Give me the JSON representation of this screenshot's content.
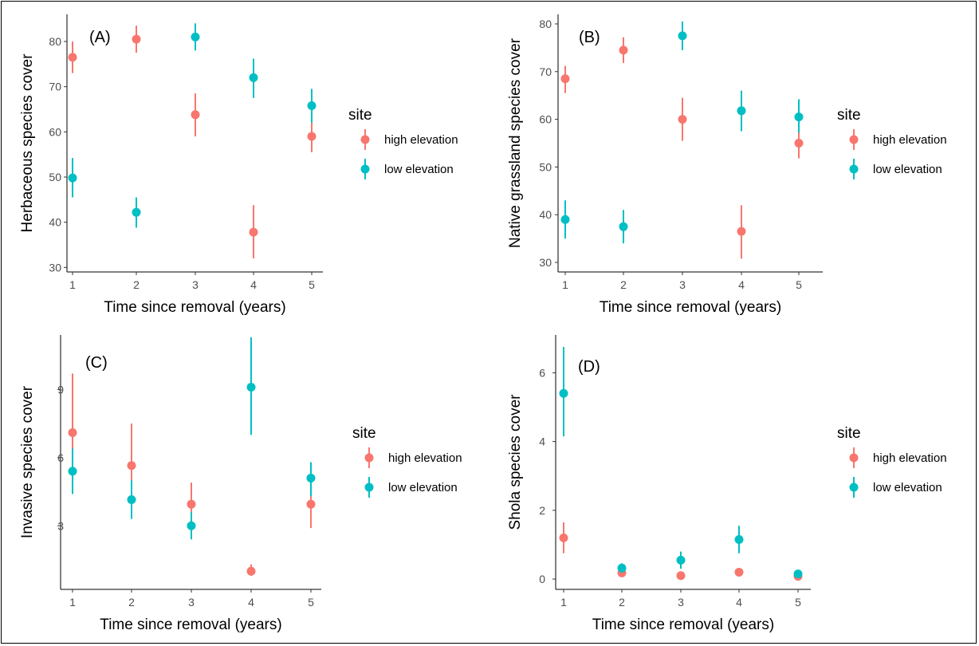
{
  "chart_data": [
    {
      "type": "scatter",
      "panel_label": "(A)",
      "xlabel": "Time since removal (years)",
      "ylabel": "Herbaceous species cover",
      "x_ticks": [
        1,
        2,
        3,
        4,
        5
      ],
      "y_ticks": [
        30,
        40,
        50,
        60,
        70,
        80
      ],
      "xlim": [
        0.8,
        5.2
      ],
      "ylim": [
        29,
        86
      ],
      "grid": false,
      "legend": {
        "title": "site",
        "position": "right"
      },
      "series": [
        {
          "name": "high elevation",
          "color": "#F8766D",
          "x": [
            1,
            2,
            3,
            4,
            5
          ],
          "y": [
            76.5,
            80.5,
            63.8,
            37.8,
            59.0
          ],
          "ymin": [
            73.0,
            77.5,
            59.0,
            32.0,
            55.5
          ],
          "ymax": [
            80.0,
            83.5,
            68.5,
            43.8,
            62.8
          ]
        },
        {
          "name": "low elevation",
          "color": "#00BFC4",
          "x": [
            1,
            2,
            3,
            4,
            5
          ],
          "y": [
            49.8,
            42.2,
            81.0,
            72.0,
            65.8
          ],
          "ymin": [
            45.5,
            38.8,
            78.0,
            67.5,
            62.0
          ],
          "ymax": [
            54.2,
            45.5,
            84.0,
            76.2,
            69.5
          ]
        }
      ]
    },
    {
      "type": "scatter",
      "panel_label": "(B)",
      "xlabel": "Time since removal (years)",
      "ylabel": "Native grassland species cover",
      "x_ticks": [
        1,
        2,
        3,
        4,
        5
      ],
      "y_ticks": [
        30,
        40,
        50,
        60,
        70,
        80
      ],
      "xlim": [
        0.8,
        5.2
      ],
      "ylim": [
        28,
        82
      ],
      "grid": false,
      "legend": {
        "title": "site",
        "position": "right"
      },
      "series": [
        {
          "name": "high elevation",
          "color": "#F8766D",
          "x": [
            1,
            2,
            3,
            4,
            5
          ],
          "y": [
            68.5,
            74.5,
            60.0,
            36.5,
            55.0
          ],
          "ymin": [
            65.5,
            71.8,
            55.5,
            30.8,
            51.8
          ],
          "ymax": [
            71.2,
            77.2,
            64.5,
            42.0,
            58.2
          ]
        },
        {
          "name": "low elevation",
          "color": "#00BFC4",
          "x": [
            1,
            2,
            3,
            4,
            5
          ],
          "y": [
            39.0,
            37.5,
            77.5,
            61.8,
            60.5
          ],
          "ymin": [
            35.0,
            34.0,
            74.5,
            57.5,
            57.2
          ],
          "ymax": [
            43.0,
            41.0,
            80.5,
            66.0,
            64.2
          ]
        }
      ]
    },
    {
      "type": "scatter",
      "panel_label": "(C)",
      "xlabel": "Time since removal (years)",
      "ylabel": "Invasive species cover",
      "x_ticks": [
        1,
        2,
        3,
        4,
        5
      ],
      "y_ticks": [
        3,
        6,
        9
      ],
      "xlim": [
        0.8,
        5.2
      ],
      "ylim": [
        0.2,
        11.4
      ],
      "grid": false,
      "legend": {
        "title": "site",
        "position": "right"
      },
      "series": [
        {
          "name": "high elevation",
          "color": "#F8766D",
          "x": [
            1,
            2,
            3,
            4,
            5
          ],
          "y": [
            7.1,
            5.65,
            3.95,
            1.0,
            3.95
          ],
          "ymin": [
            4.6,
            3.9,
            2.9,
            0.8,
            2.9
          ],
          "ymax": [
            9.7,
            7.5,
            4.9,
            1.3,
            5.1
          ]
        },
        {
          "name": "low elevation",
          "color": "#00BFC4",
          "x": [
            1,
            2,
            3,
            4,
            5
          ],
          "y": [
            5.4,
            4.15,
            3.0,
            9.1,
            5.1
          ],
          "ymin": [
            4.4,
            3.3,
            2.4,
            7.0,
            4.3
          ],
          "ymax": [
            6.4,
            5.0,
            3.6,
            11.3,
            5.8
          ]
        }
      ]
    },
    {
      "type": "scatter",
      "panel_label": "(D)",
      "xlabel": "Time since removal (years)",
      "ylabel": "Shola species cover",
      "x_ticks": [
        1,
        2,
        3,
        4,
        5
      ],
      "y_ticks": [
        0,
        2,
        4,
        6
      ],
      "xlim": [
        0.8,
        5.2
      ],
      "ylim": [
        -0.3,
        7.1
      ],
      "grid": false,
      "legend": {
        "title": "site",
        "position": "right"
      },
      "series": [
        {
          "name": "high elevation",
          "color": "#F8766D",
          "x": [
            1,
            2,
            3,
            4,
            5
          ],
          "y": [
            1.2,
            0.18,
            0.1,
            0.2,
            0.08
          ],
          "ymin": [
            0.75,
            0.1,
            0.0,
            0.1,
            0.0
          ],
          "ymax": [
            1.65,
            0.28,
            0.2,
            0.32,
            0.16
          ]
        },
        {
          "name": "low elevation",
          "color": "#00BFC4",
          "x": [
            1,
            2,
            3,
            4,
            5
          ],
          "y": [
            5.4,
            0.32,
            0.55,
            1.15,
            0.15
          ],
          "ymin": [
            4.15,
            0.18,
            0.3,
            0.75,
            0.05
          ],
          "ymax": [
            6.75,
            0.46,
            0.8,
            1.55,
            0.25
          ]
        }
      ]
    }
  ]
}
